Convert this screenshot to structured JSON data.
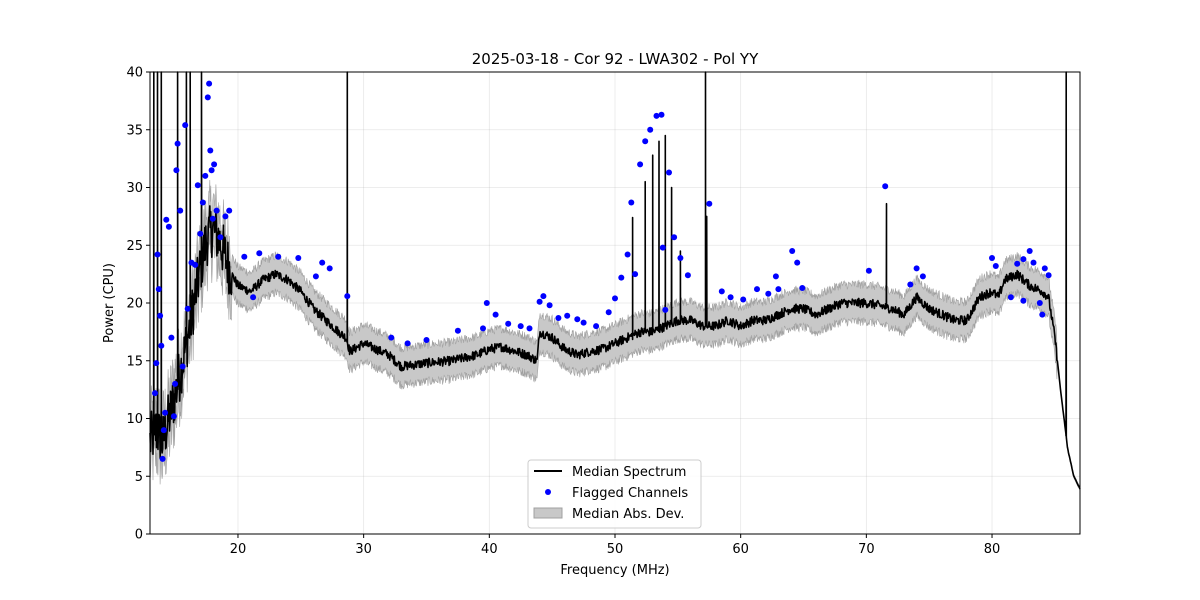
{
  "chart_data": {
    "type": "line",
    "title": "2025-03-18 - Cor 92 - LWA302 - Pol YY",
    "xlabel": "Frequency (MHz)",
    "ylabel": "Power (CPU)",
    "xlim": [
      13,
      87
    ],
    "ylim": [
      0,
      40
    ],
    "xticks": [
      20,
      30,
      40,
      50,
      60,
      70,
      80
    ],
    "yticks": [
      0,
      5,
      10,
      15,
      20,
      25,
      30,
      35,
      40
    ],
    "grid": true,
    "legend_position": "lower-center",
    "colors": {
      "median": "#000000",
      "flagged": "#0000ff",
      "mad": "#c8c8c8",
      "mad_edge": "#a0a0a0"
    },
    "series": [
      {
        "name": "Median Spectrum",
        "kind": "line",
        "base_points": [
          [
            13.0,
            8.0
          ],
          [
            13.5,
            9.0
          ],
          [
            14.0,
            8.0
          ],
          [
            14.5,
            10.0
          ],
          [
            15.0,
            12.0
          ],
          [
            15.5,
            14.5
          ],
          [
            16.0,
            17.0
          ],
          [
            16.5,
            20.0
          ],
          [
            17.0,
            23.0
          ],
          [
            17.5,
            25.5
          ],
          [
            18.0,
            26.5
          ],
          [
            18.5,
            25.5
          ],
          [
            19.0,
            24.0
          ],
          [
            19.5,
            22.5
          ],
          [
            20.0,
            21.5
          ],
          [
            21.0,
            21.0
          ],
          [
            22.0,
            22.0
          ],
          [
            23.0,
            22.5
          ],
          [
            24.0,
            22.0
          ],
          [
            25.0,
            21.0
          ],
          [
            26.0,
            19.5
          ],
          [
            27.0,
            18.5
          ],
          [
            28.0,
            17.5
          ],
          [
            28.6,
            17.0
          ],
          [
            28.9,
            15.8
          ],
          [
            30.0,
            16.5
          ],
          [
            31.0,
            16.0
          ],
          [
            32.0,
            15.5
          ],
          [
            33.0,
            14.5
          ],
          [
            35.0,
            14.8
          ],
          [
            37.0,
            15.0
          ],
          [
            39.0,
            15.5
          ],
          [
            40.0,
            16.0
          ],
          [
            41.0,
            16.2
          ],
          [
            43.0,
            15.5
          ],
          [
            43.8,
            15.0
          ],
          [
            44.0,
            17.5
          ],
          [
            45.0,
            17.0
          ],
          [
            46.0,
            16.0
          ],
          [
            47.0,
            15.5
          ],
          [
            48.0,
            15.8
          ],
          [
            49.0,
            16.0
          ],
          [
            50.0,
            16.5
          ],
          [
            51.0,
            17.0
          ],
          [
            52.0,
            17.5
          ],
          [
            53.0,
            17.5
          ],
          [
            54.0,
            18.0
          ],
          [
            55.0,
            18.5
          ],
          [
            56.0,
            18.5
          ],
          [
            57.0,
            18.0
          ],
          [
            58.0,
            18.0
          ],
          [
            59.0,
            18.5
          ],
          [
            60.0,
            18.0
          ],
          [
            61.0,
            18.5
          ],
          [
            62.0,
            18.5
          ],
          [
            63.0,
            19.0
          ],
          [
            64.0,
            19.5
          ],
          [
            65.0,
            19.5
          ],
          [
            66.0,
            19.0
          ],
          [
            67.0,
            19.5
          ],
          [
            68.0,
            20.0
          ],
          [
            69.0,
            20.0
          ],
          [
            70.0,
            20.0
          ],
          [
            71.0,
            19.8
          ],
          [
            72.0,
            19.5
          ],
          [
            73.0,
            19.0
          ],
          [
            74.0,
            20.5
          ],
          [
            75.0,
            19.5
          ],
          [
            76.0,
            19.0
          ],
          [
            77.0,
            18.5
          ],
          [
            78.0,
            18.5
          ],
          [
            79.0,
            20.5
          ],
          [
            80.0,
            21.0
          ],
          [
            80.5,
            20.5
          ],
          [
            81.0,
            22.0
          ],
          [
            82.0,
            22.5
          ],
          [
            83.0,
            21.5
          ],
          [
            84.0,
            21.0
          ],
          [
            84.5,
            20.5
          ],
          [
            85.0,
            17.0
          ],
          [
            85.5,
            12.0
          ],
          [
            85.9,
            8.5
          ],
          [
            86.0,
            7.5
          ],
          [
            86.5,
            5.0
          ],
          [
            87.0,
            3.9
          ]
        ],
        "spikes": [
          [
            13.3,
            40
          ],
          [
            13.6,
            40
          ],
          [
            13.9,
            40
          ],
          [
            15.2,
            40
          ],
          [
            15.9,
            40
          ],
          [
            16.2,
            40
          ],
          [
            17.1,
            40
          ],
          [
            28.7,
            40
          ],
          [
            57.2,
            40
          ],
          [
            85.9,
            40
          ],
          [
            71.6,
            28.6
          ],
          [
            51.4,
            27.4
          ],
          [
            52.4,
            30.5
          ],
          [
            53.0,
            32.8
          ],
          [
            53.5,
            34.0
          ],
          [
            54.0,
            34.5
          ],
          [
            54.5,
            30.0
          ],
          [
            55.2,
            24.5
          ],
          [
            57.3,
            27.5
          ]
        ]
      },
      {
        "name": "Flagged Channels",
        "kind": "scatter",
        "points": [
          [
            13.4,
            12.2
          ],
          [
            13.5,
            14.8
          ],
          [
            13.6,
            24.2
          ],
          [
            13.7,
            21.2
          ],
          [
            13.8,
            18.9
          ],
          [
            13.9,
            16.3
          ],
          [
            14.0,
            6.5
          ],
          [
            14.1,
            9.0
          ],
          [
            14.2,
            10.5
          ],
          [
            14.3,
            27.2
          ],
          [
            14.5,
            26.6
          ],
          [
            14.7,
            17.0
          ],
          [
            14.9,
            10.2
          ],
          [
            15.0,
            13.0
          ],
          [
            15.1,
            31.5
          ],
          [
            15.2,
            33.8
          ],
          [
            15.4,
            28.0
          ],
          [
            15.6,
            14.5
          ],
          [
            15.8,
            35.4
          ],
          [
            16.0,
            19.5
          ],
          [
            16.3,
            23.5
          ],
          [
            16.6,
            23.3
          ],
          [
            16.8,
            30.2
          ],
          [
            17.0,
            26.0
          ],
          [
            17.2,
            28.7
          ],
          [
            17.4,
            31.0
          ],
          [
            17.6,
            37.8
          ],
          [
            17.7,
            39.0
          ],
          [
            17.8,
            33.2
          ],
          [
            17.9,
            31.5
          ],
          [
            18.0,
            27.3
          ],
          [
            18.1,
            32.0
          ],
          [
            18.3,
            28.0
          ],
          [
            18.6,
            25.7
          ],
          [
            19.0,
            27.5
          ],
          [
            19.3,
            28.0
          ],
          [
            20.5,
            24.0
          ],
          [
            21.2,
            20.5
          ],
          [
            21.7,
            24.3
          ],
          [
            23.2,
            24.0
          ],
          [
            24.8,
            23.9
          ],
          [
            26.2,
            22.3
          ],
          [
            26.7,
            23.5
          ],
          [
            27.3,
            23.0
          ],
          [
            28.7,
            20.6
          ],
          [
            32.2,
            17.0
          ],
          [
            33.5,
            16.5
          ],
          [
            35.0,
            16.8
          ],
          [
            37.5,
            17.6
          ],
          [
            39.5,
            17.8
          ],
          [
            39.8,
            20.0
          ],
          [
            40.5,
            19.0
          ],
          [
            41.5,
            18.2
          ],
          [
            42.5,
            18.0
          ],
          [
            43.2,
            17.8
          ],
          [
            44.0,
            20.1
          ],
          [
            44.3,
            20.6
          ],
          [
            44.8,
            19.8
          ],
          [
            45.5,
            18.7
          ],
          [
            46.2,
            18.9
          ],
          [
            47.0,
            18.6
          ],
          [
            47.5,
            18.3
          ],
          [
            48.5,
            18.0
          ],
          [
            49.5,
            19.2
          ],
          [
            50.0,
            20.4
          ],
          [
            50.5,
            22.2
          ],
          [
            51.0,
            24.2
          ],
          [
            51.3,
            28.7
          ],
          [
            51.6,
            22.5
          ],
          [
            52.0,
            32.0
          ],
          [
            52.4,
            34.0
          ],
          [
            52.8,
            35.0
          ],
          [
            53.3,
            36.2
          ],
          [
            53.7,
            36.3
          ],
          [
            53.8,
            24.8
          ],
          [
            54.0,
            19.4
          ],
          [
            54.3,
            31.3
          ],
          [
            54.7,
            25.7
          ],
          [
            55.2,
            23.9
          ],
          [
            55.8,
            22.4
          ],
          [
            57.5,
            28.6
          ],
          [
            58.5,
            21.0
          ],
          [
            59.2,
            20.5
          ],
          [
            60.2,
            20.3
          ],
          [
            61.3,
            21.2
          ],
          [
            62.2,
            20.8
          ],
          [
            62.8,
            22.3
          ],
          [
            63.0,
            21.2
          ],
          [
            64.1,
            24.5
          ],
          [
            64.5,
            23.5
          ],
          [
            64.9,
            21.3
          ],
          [
            70.2,
            22.8
          ],
          [
            71.5,
            30.1
          ],
          [
            73.5,
            21.6
          ],
          [
            74.0,
            23.0
          ],
          [
            74.5,
            22.3
          ],
          [
            80.0,
            23.9
          ],
          [
            80.3,
            23.2
          ],
          [
            81.5,
            20.5
          ],
          [
            82.0,
            23.4
          ],
          [
            82.5,
            23.8
          ],
          [
            83.0,
            24.5
          ],
          [
            83.3,
            23.5
          ],
          [
            83.8,
            20.0
          ],
          [
            84.2,
            23.0
          ],
          [
            84.5,
            22.4
          ],
          [
            84.0,
            19.0
          ],
          [
            82.5,
            20.2
          ]
        ]
      },
      {
        "name": "Median Abs. Dev.",
        "kind": "band",
        "halfwidth": 1.6
      }
    ]
  }
}
